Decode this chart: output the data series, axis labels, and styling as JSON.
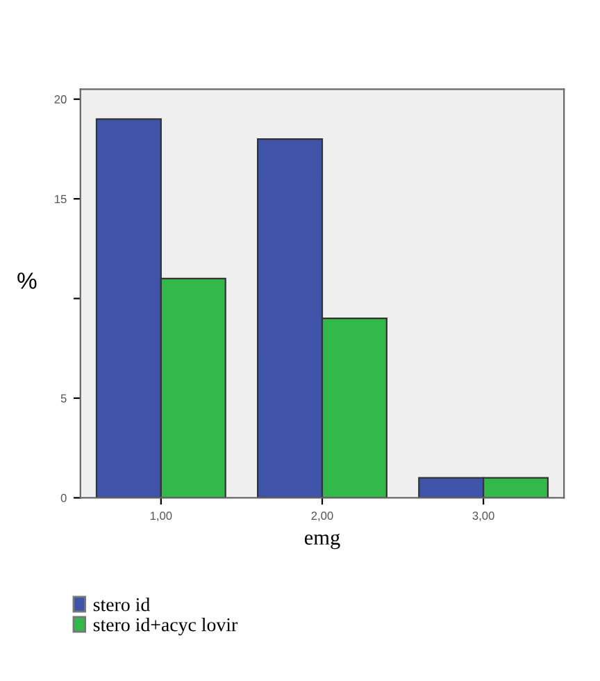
{
  "chart_data": {
    "type": "bar",
    "xlabel": "emg",
    "ylabel": "%",
    "categories": [
      "1,00",
      "2,00",
      "3,00"
    ],
    "series": [
      {
        "name": "stero id",
        "color": "#3f54a8",
        "values": [
          19,
          18,
          1
        ]
      },
      {
        "name": "stero id+acyc lovir",
        "color": "#33b84a",
        "values": [
          11,
          9,
          1
        ]
      }
    ],
    "ylim": [
      0,
      20.5
    ],
    "yticks": [
      0,
      5,
      {
        "value": 10,
        "label": null
      },
      15,
      20
    ],
    "grid": false,
    "legend": "bottom left"
  }
}
